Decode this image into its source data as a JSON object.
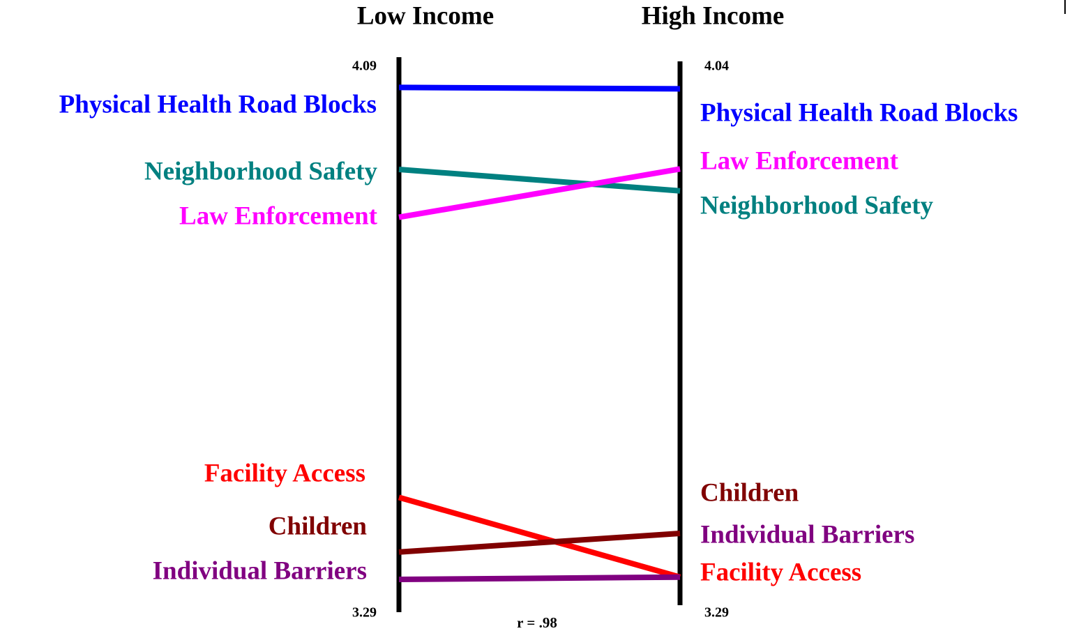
{
  "chart_data": {
    "type": "slope",
    "categories": [
      "Low Income",
      "High Income"
    ],
    "ylim": [
      3.29,
      4.09
    ],
    "yticks": [
      3.29,
      4.09
    ],
    "y2lim": [
      3.29,
      4.04
    ],
    "y2ticks": [
      3.29,
      4.04
    ],
    "annotation": "r = .98",
    "series": [
      {
        "name": "Physical Health Road Blocks",
        "color": "#0000ff",
        "values": [
          4.06,
          4.01
        ]
      },
      {
        "name": "Neighborhood Safety",
        "color": "#008080",
        "values": [
          3.94,
          3.87
        ]
      },
      {
        "name": "Law Enforcement",
        "color": "#ff00ff",
        "values": [
          3.87,
          3.9
        ]
      },
      {
        "name": "Facility Access",
        "color": "#ff0000",
        "values": [
          3.46,
          3.34
        ]
      },
      {
        "name": "Children",
        "color": "#800000",
        "values": [
          3.38,
          3.4
        ]
      },
      {
        "name": "Individual Barriers",
        "color": "#800080",
        "values": [
          3.34,
          3.34
        ]
      }
    ]
  }
}
